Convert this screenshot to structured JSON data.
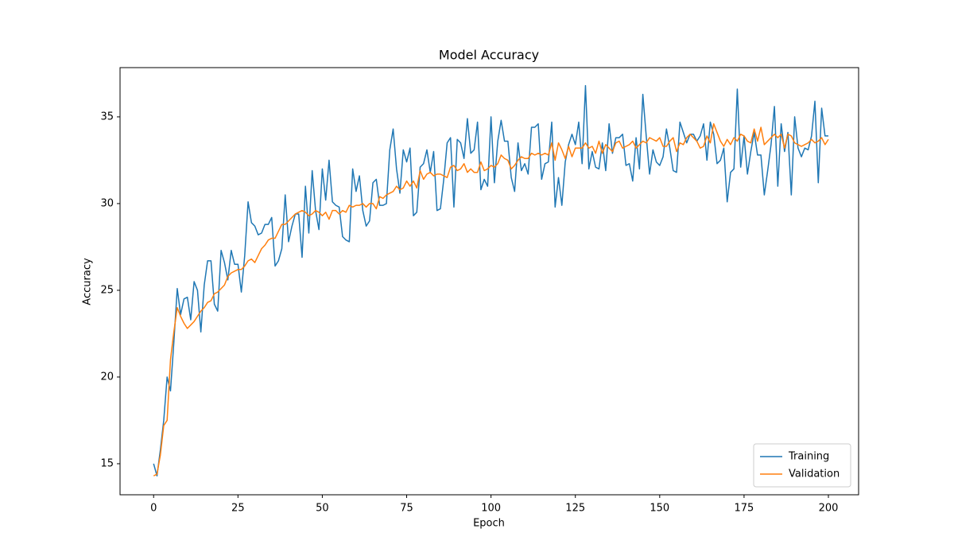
{
  "chart_data": {
    "type": "line",
    "title": "Model Accuracy",
    "x_label": "Epoch",
    "y_label": "Accuracy",
    "x": [
      0,
      1,
      2,
      3,
      4,
      5,
      6,
      7,
      8,
      9,
      10,
      11,
      12,
      13,
      14,
      15,
      16,
      17,
      18,
      19,
      20,
      21,
      22,
      23,
      24,
      25,
      26,
      27,
      28,
      29,
      30,
      31,
      32,
      33,
      34,
      35,
      36,
      37,
      38,
      39,
      40,
      41,
      42,
      43,
      44,
      45,
      46,
      47,
      48,
      49,
      50,
      51,
      52,
      53,
      54,
      55,
      56,
      57,
      58,
      59,
      60,
      61,
      62,
      63,
      64,
      65,
      66,
      67,
      68,
      69,
      70,
      71,
      72,
      73,
      74,
      75,
      76,
      77,
      78,
      79,
      80,
      81,
      82,
      83,
      84,
      85,
      86,
      87,
      88,
      89,
      90,
      91,
      92,
      93,
      94,
      95,
      96,
      97,
      98,
      99,
      100,
      101,
      102,
      103,
      104,
      105,
      106,
      107,
      108,
      109,
      110,
      111,
      112,
      113,
      114,
      115,
      116,
      117,
      118,
      119,
      120,
      121,
      122,
      123,
      124,
      125,
      126,
      127,
      128,
      129,
      130,
      131,
      132,
      133,
      134,
      135,
      136,
      137,
      138,
      139,
      140,
      141,
      142,
      143,
      144,
      145,
      146,
      147,
      148,
      149,
      150,
      151,
      152,
      153,
      154,
      155,
      156,
      157,
      158,
      159,
      160,
      161,
      162,
      163,
      164,
      165,
      166,
      167,
      168,
      169,
      170,
      171,
      172,
      173,
      174,
      175,
      176,
      177,
      178,
      179,
      180,
      181,
      182,
      183,
      184,
      185,
      186,
      187,
      188,
      189,
      190,
      191,
      192,
      193,
      194,
      195,
      196,
      197,
      198,
      199,
      200
    ],
    "series": [
      {
        "name": "Training",
        "color": "#1f77b4",
        "values": [
          15.0,
          14.3,
          15.8,
          17.5,
          20.0,
          19.2,
          22.0,
          25.1,
          23.6,
          24.5,
          24.6,
          23.3,
          25.5,
          25.0,
          22.6,
          25.3,
          26.7,
          26.7,
          24.2,
          23.8,
          27.3,
          26.6,
          25.6,
          27.3,
          26.5,
          26.5,
          24.9,
          27.0,
          30.1,
          28.9,
          28.7,
          28.2,
          28.3,
          28.8,
          28.8,
          29.2,
          26.4,
          26.7,
          27.4,
          30.5,
          27.8,
          28.7,
          29.4,
          29.4,
          26.9,
          31.0,
          28.3,
          31.9,
          29.6,
          28.5,
          32.0,
          30.2,
          32.5,
          30.1,
          29.9,
          29.8,
          28.1,
          27.9,
          27.8,
          32.0,
          30.7,
          31.6,
          29.6,
          28.7,
          29.0,
          31.2,
          31.4,
          29.9,
          29.9,
          30.0,
          33.1,
          34.3,
          32.0,
          30.6,
          33.1,
          32.4,
          33.2,
          29.3,
          29.5,
          32.1,
          32.3,
          33.1,
          31.8,
          33.0,
          29.6,
          29.7,
          31.4,
          33.5,
          33.8,
          29.8,
          33.7,
          33.5,
          32.6,
          34.9,
          32.9,
          33.1,
          34.7,
          30.8,
          31.4,
          31.0,
          35.0,
          31.2,
          33.6,
          34.8,
          33.6,
          33.6,
          31.5,
          30.7,
          33.5,
          31.9,
          32.3,
          31.7,
          34.4,
          34.4,
          34.6,
          31.4,
          32.3,
          32.4,
          34.7,
          29.8,
          31.5,
          29.9,
          32.4,
          33.4,
          34.0,
          33.4,
          34.7,
          32.3,
          36.8,
          32.0,
          33.0,
          32.1,
          32.0,
          33.5,
          31.9,
          34.6,
          32.9,
          33.8,
          33.8,
          34.0,
          32.2,
          32.3,
          31.3,
          33.8,
          32.0,
          36.3,
          33.9,
          31.7,
          33.1,
          32.4,
          32.2,
          32.7,
          34.3,
          33.2,
          31.9,
          31.8,
          34.7,
          34.1,
          33.5,
          34.0,
          34.0,
          33.6,
          33.9,
          34.6,
          32.5,
          34.7,
          34.0,
          32.3,
          32.5,
          33.2,
          30.1,
          31.8,
          32.0,
          36.6,
          32.1,
          33.9,
          31.7,
          33.0,
          34.1,
          32.8,
          32.8,
          30.5,
          31.9,
          33.4,
          35.6,
          31.0,
          34.6,
          33.0,
          34.1,
          30.5,
          35.0,
          33.2,
          32.7,
          33.2,
          33.1,
          33.9,
          35.9,
          31.2,
          35.5,
          33.9,
          33.9
        ]
      },
      {
        "name": "Validation",
        "color": "#ff7f0e",
        "values": [
          14.3,
          14.4,
          15.5,
          17.2,
          17.5,
          21.0,
          22.6,
          24.0,
          23.5,
          23.1,
          22.8,
          23.0,
          23.2,
          23.5,
          23.8,
          24.0,
          24.3,
          24.4,
          24.8,
          24.9,
          25.1,
          25.3,
          25.8,
          26.0,
          26.1,
          26.2,
          26.2,
          26.4,
          26.7,
          26.8,
          26.6,
          27.0,
          27.4,
          27.6,
          27.9,
          28.0,
          28.0,
          28.4,
          28.8,
          28.8,
          29.0,
          29.2,
          29.4,
          29.5,
          29.6,
          29.5,
          29.3,
          29.4,
          29.6,
          29.5,
          29.3,
          29.5,
          29.1,
          29.6,
          29.6,
          29.4,
          29.6,
          29.5,
          29.9,
          29.8,
          29.9,
          29.9,
          30.0,
          29.8,
          30.0,
          30.0,
          29.7,
          30.4,
          30.3,
          30.5,
          30.6,
          30.7,
          31.0,
          30.8,
          30.9,
          31.3,
          31.0,
          31.3,
          30.9,
          31.9,
          31.4,
          31.7,
          31.8,
          31.6,
          31.7,
          31.7,
          31.6,
          31.5,
          32.1,
          32.2,
          31.9,
          32.0,
          32.3,
          31.8,
          32.0,
          31.8,
          31.8,
          32.4,
          31.9,
          32.0,
          32.2,
          32.1,
          32.3,
          32.8,
          32.6,
          32.5,
          32.0,
          32.2,
          32.5,
          32.7,
          32.6,
          32.6,
          32.9,
          32.8,
          32.9,
          32.8,
          32.9,
          32.8,
          33.5,
          32.5,
          33.5,
          33.1,
          32.6,
          33.3,
          32.7,
          33.2,
          33.2,
          33.2,
          33.5,
          33.2,
          33.3,
          32.9,
          33.6,
          32.9,
          33.4,
          33.2,
          33.0,
          33.5,
          33.6,
          33.2,
          33.3,
          33.4,
          33.6,
          33.2,
          33.4,
          33.6,
          33.5,
          33.8,
          33.7,
          33.6,
          33.8,
          33.3,
          33.3,
          33.6,
          33.8,
          33.0,
          33.5,
          33.4,
          33.8,
          34.0,
          33.8,
          33.6,
          33.2,
          33.3,
          33.9,
          33.5,
          34.6,
          34.1,
          33.6,
          33.3,
          33.7,
          33.4,
          33.8,
          33.6,
          34.0,
          33.9,
          33.6,
          33.5,
          34.3,
          33.6,
          34.4,
          33.4,
          33.6,
          33.8,
          34.0,
          33.8,
          34.0,
          33.2,
          34.0,
          33.9,
          33.5,
          33.4,
          33.3,
          33.4,
          33.5,
          33.7,
          33.5,
          33.6,
          33.8,
          33.4,
          33.7
        ]
      }
    ],
    "xlim": [
      -9.95,
      208.95
    ],
    "xticks": [
      0,
      25,
      50,
      75,
      100,
      125,
      150,
      175,
      200
    ],
    "ylim": [
      13.21,
      37.84
    ],
    "yticks": [
      15,
      20,
      25,
      30,
      35
    ],
    "legend": "lower right"
  }
}
